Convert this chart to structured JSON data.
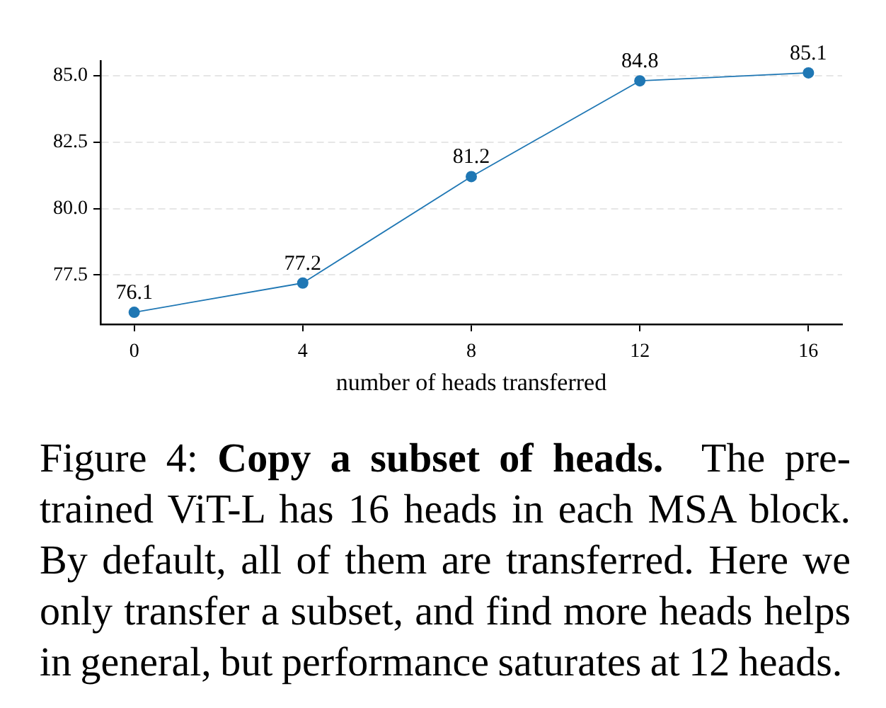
{
  "chart_data": {
    "type": "line",
    "x": [
      0,
      4,
      8,
      12,
      16
    ],
    "values": [
      76.1,
      77.2,
      81.2,
      84.8,
      85.1
    ],
    "color": "#1f77b4",
    "xlabel": "number of heads transferred",
    "xlim": [
      -0.8,
      16.8
    ],
    "xticks": [
      0,
      4,
      8,
      12,
      16
    ],
    "ylim": [
      75.65,
      85.55
    ],
    "yticks": [
      77.5,
      {
        "value": 80,
        "label": "80.0"
      },
      82.5,
      {
        "value": 85,
        "label": "85.0"
      }
    ],
    "grid": "y",
    "marker": "circle",
    "line_style": "solid",
    "data_labels": true,
    "annotations": [
      "Figure 4:",
      "Copy a subset of heads.",
      "The pre-trained ViT-L has 16 heads in each MSA block. By default, all of them are transferred. Here we only transfer a subset, and find more heads helps in general, but performance saturates at 12 heads."
    ]
  }
}
